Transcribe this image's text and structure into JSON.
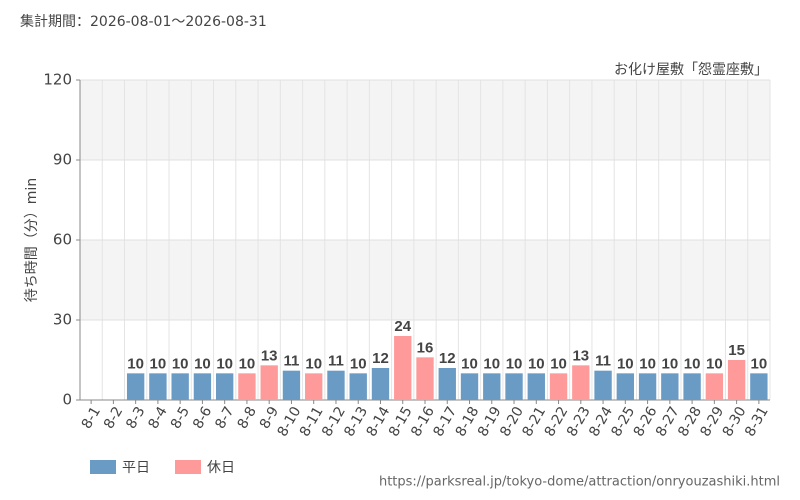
{
  "chart_data": {
    "type": "bar",
    "title": "集計期間：2026-08-01～2026-08-31",
    "subtitle": "お化け屋敷「怨霊座敷」",
    "y_label": "待ち時間（分）min",
    "source": "https://parksreal.jp/tokyo-dome/attraction/onryouzashiki.html",
    "categories": [
      "8-1",
      "8-2",
      "8-3",
      "8-4",
      "8-5",
      "8-6",
      "8-7",
      "8-8",
      "8-9",
      "8-10",
      "8-11",
      "8-12",
      "8-13",
      "8-14",
      "8-15",
      "8-16",
      "8-17",
      "8-18",
      "8-19",
      "8-20",
      "8-21",
      "8-22",
      "8-23",
      "8-24",
      "8-25",
      "8-26",
      "8-27",
      "8-28",
      "8-29",
      "8-30",
      "8-31"
    ],
    "category_colors": [
      "#ff8a8a",
      "#ff8a8a",
      "#444444",
      "#444444",
      "#444444",
      "#444444",
      "#444444",
      "#ff8a8a",
      "#ff8a8a",
      "#444444",
      "#ff8a8a",
      "#444444",
      "#444444",
      "#444444",
      "#ff8a8a",
      "#ff8a8a",
      "#444444",
      "#444444",
      "#444444",
      "#444444",
      "#444444",
      "#ff8a8a",
      "#ff8a8a",
      "#444444",
      "#444444",
      "#444444",
      "#444444",
      "#444444",
      "#ff8a8a",
      "#ff8a8a",
      "#444444"
    ],
    "series": [
      {
        "name": "平日",
        "color": "#6a9bc5",
        "values": [
          null,
          null,
          10,
          10,
          10,
          10,
          10,
          null,
          null,
          11,
          null,
          11,
          10,
          12,
          null,
          null,
          12,
          10,
          10,
          10,
          10,
          null,
          null,
          11,
          10,
          10,
          10,
          10,
          null,
          null,
          10
        ]
      },
      {
        "name": "休日",
        "color": "#ff9a9a",
        "values": [
          null,
          null,
          null,
          null,
          null,
          null,
          null,
          10,
          13,
          null,
          10,
          null,
          null,
          null,
          24,
          16,
          null,
          null,
          null,
          null,
          null,
          10,
          13,
          null,
          null,
          null,
          null,
          null,
          10,
          15,
          null
        ]
      }
    ],
    "ylim": [
      0,
      120
    ],
    "yticks": [
      0,
      30,
      60,
      90,
      120
    ],
    "grid": true
  }
}
